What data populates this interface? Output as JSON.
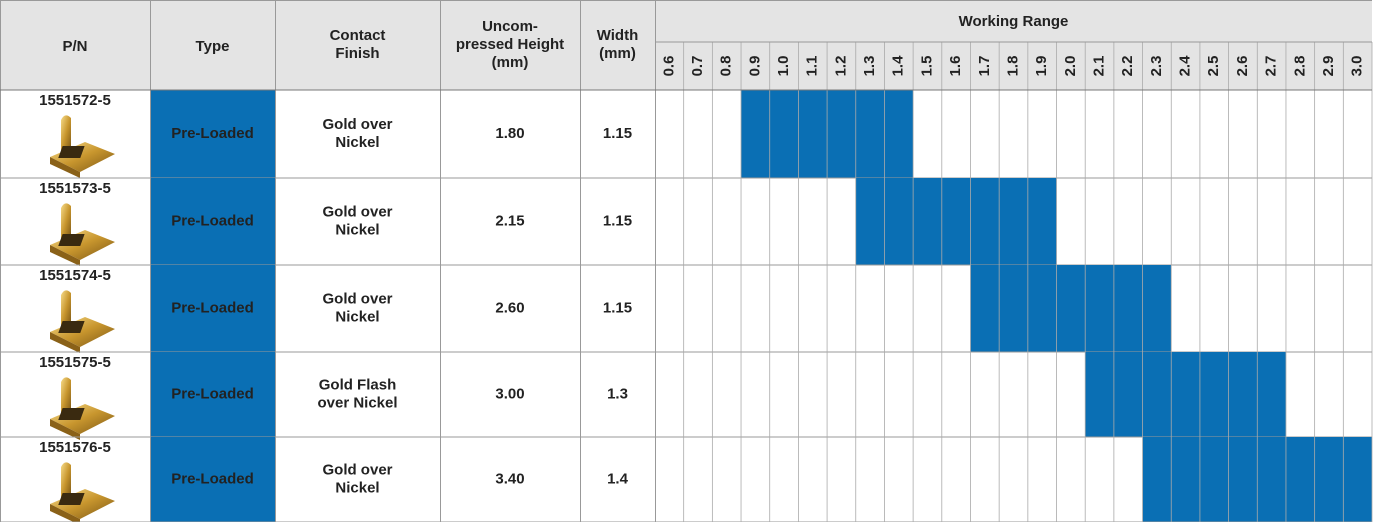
{
  "table": {
    "header": {
      "pn": [
        "P/N"
      ],
      "type": [
        "Type"
      ],
      "finish": [
        "Contact",
        "Finish"
      ],
      "height": [
        "Uncom-",
        "pressed Height",
        "(mm)"
      ],
      "width": [
        "Width",
        "(mm)"
      ],
      "range": [
        "Working Range"
      ],
      "range_ticks": [
        "0.6",
        "0.7",
        "0.8",
        "0.9",
        "1.0",
        "1.1",
        "1.2",
        "1.3",
        "1.4",
        "1.5",
        "1.6",
        "1.7",
        "1.8",
        "1.9",
        "2.0",
        "2.1",
        "2.2",
        "2.3",
        "2.4",
        "2.5",
        "2.6",
        "2.7",
        "2.8",
        "2.9",
        "3.0"
      ]
    },
    "rows": [
      {
        "pn": "1551572-5",
        "type": "Pre-Loaded",
        "finish": [
          "Gold over",
          "Nickel"
        ],
        "height": "1.80",
        "width": "1.15",
        "range": {
          "from": 0.9,
          "to": 1.4
        }
      },
      {
        "pn": "1551573-5",
        "type": "Pre-Loaded",
        "finish": [
          "Gold over",
          "Nickel"
        ],
        "height": "2.15",
        "width": "1.15",
        "range": {
          "from": 1.3,
          "to": 1.9
        }
      },
      {
        "pn": "1551574-5",
        "type": "Pre-Loaded",
        "finish": [
          "Gold over",
          "Nickel"
        ],
        "height": "2.60",
        "width": "1.15",
        "range": {
          "from": 1.7,
          "to": 2.3
        }
      },
      {
        "pn": "1551575-5",
        "type": "Pre-Loaded",
        "finish": [
          "Gold Flash",
          "over Nickel"
        ],
        "height": "3.00",
        "width": "1.3",
        "range": {
          "from": 2.1,
          "to": 2.7
        }
      },
      {
        "pn": "1551576-5",
        "type": "Pre-Loaded",
        "finish": [
          "Gold over",
          "Nickel"
        ],
        "height": "3.40",
        "width": "1.4",
        "range": {
          "from": 2.3,
          "to": 3.0
        }
      }
    ]
  }
}
